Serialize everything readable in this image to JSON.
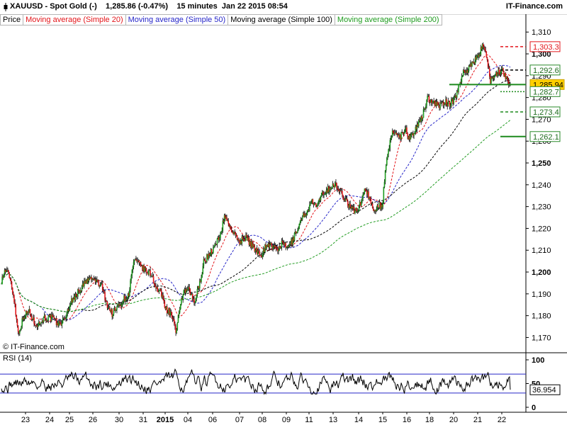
{
  "header": {
    "instrument_line": "XAUUSD - Spot Gold (-)    1,285.86 (-0.47%)    15 minutes  Jan 22 2015 08:54",
    "brand": "IT-Finance.com"
  },
  "legend": [
    {
      "label": "Price",
      "color": "#000000"
    },
    {
      "label": "Moving average (Simple 20)",
      "color": "#e3161b"
    },
    {
      "label": "Moving average (Simple 50)",
      "color": "#2626c8"
    },
    {
      "label": "Moving average (Simple 100)",
      "color": "#000000"
    },
    {
      "label": "Moving average (Simple 200)",
      "color": "#1f9b1f"
    }
  ],
  "main_credit": "© IT-Finance.com",
  "rsi_label": "RSI (14)",
  "chart_data": [
    {
      "type": "candlestick",
      "instrument": "XAUUSD - Spot Gold",
      "timeframe": "15 minutes",
      "last_price": 1285.86,
      "change_pct": -0.47,
      "ylim": [
        1163,
        1313
      ],
      "y_ticks": [
        1170,
        1180,
        1190,
        1200,
        1210,
        1220,
        1230,
        1240,
        1250,
        1260,
        1270,
        1280,
        1290,
        1300,
        1310
      ],
      "y_tick_labels": [
        "1,170",
        "1,180",
        "1,190",
        "1,200",
        "1,210",
        "1,220",
        "1,230",
        "1,240",
        "1,250",
        "1,260",
        "1,270",
        "1,280",
        "1,290",
        "1,300",
        "1,310"
      ],
      "y_major_ticks": [
        1200,
        1250,
        1300
      ],
      "x_tick_labels": [
        "23",
        "24",
        "25",
        "26",
        "30",
        "31",
        "2015",
        "04",
        "06",
        "07",
        "08",
        "09",
        "11",
        "13",
        "14",
        "15",
        "16",
        "18",
        "20",
        "21",
        "22"
      ],
      "price_path": [
        [
          0,
          1196
        ],
        [
          0.7,
          1201
        ],
        [
          1.6,
          1198
        ],
        [
          2.4,
          1188
        ],
        [
          3.2,
          1172
        ],
        [
          4.3,
          1180
        ],
        [
          5.3,
          1182
        ],
        [
          6.2,
          1177
        ],
        [
          7.1,
          1176
        ],
        [
          8.1,
          1179
        ],
        [
          9.6,
          1179
        ],
        [
          10.8,
          1176
        ],
        [
          12,
          1178
        ],
        [
          13.2,
          1186
        ],
        [
          14.4,
          1190
        ],
        [
          15.6,
          1194
        ],
        [
          16.8,
          1197
        ],
        [
          18,
          1196
        ],
        [
          19.2,
          1193
        ],
        [
          20.3,
          1184
        ],
        [
          21.1,
          1181
        ],
        [
          22.2,
          1184
        ],
        [
          23.5,
          1188
        ],
        [
          24.2,
          1189
        ],
        [
          25.2,
          1205
        ],
        [
          26.6,
          1203
        ],
        [
          27.6,
          1200
        ],
        [
          28.6,
          1199
        ],
        [
          29.6,
          1192
        ],
        [
          30.5,
          1190
        ],
        [
          31.4,
          1183
        ],
        [
          32.3,
          1181
        ],
        [
          32.9,
          1177
        ],
        [
          33.3,
          1170
        ],
        [
          33.9,
          1183
        ],
        [
          34.6,
          1190
        ],
        [
          35.6,
          1192
        ],
        [
          36.8,
          1186
        ],
        [
          37.8,
          1195
        ],
        [
          38.6,
          1205
        ],
        [
          39.6,
          1208
        ],
        [
          40.8,
          1212
        ],
        [
          41.8,
          1218
        ],
        [
          42.6,
          1226
        ],
        [
          43.3,
          1222
        ],
        [
          44.4,
          1217
        ],
        [
          45.4,
          1214
        ],
        [
          46.5,
          1216
        ],
        [
          47.5,
          1213
        ],
        [
          48.5,
          1210
        ],
        [
          49.6,
          1208
        ],
        [
          50.6,
          1213
        ],
        [
          51.5,
          1212
        ],
        [
          52.5,
          1210
        ],
        [
          53.5,
          1213
        ],
        [
          54.4,
          1211
        ],
        [
          55.4,
          1214
        ],
        [
          56.3,
          1219
        ],
        [
          57.3,
          1225
        ],
        [
          58.3,
          1228
        ],
        [
          59.2,
          1232
        ],
        [
          60.2,
          1230
        ],
        [
          61.2,
          1236
        ],
        [
          62.3,
          1238
        ],
        [
          63.6,
          1240
        ],
        [
          64.8,
          1236
        ],
        [
          65.7,
          1233
        ],
        [
          66.6,
          1229
        ],
        [
          67.7,
          1228
        ],
        [
          68.6,
          1232
        ],
        [
          69.3,
          1239
        ],
        [
          70.1,
          1234
        ],
        [
          70.9,
          1228
        ],
        [
          71.8,
          1231
        ],
        [
          72.6,
          1230
        ],
        [
          73.1,
          1244
        ],
        [
          73.7,
          1255
        ],
        [
          74.6,
          1265
        ],
        [
          75.9,
          1262
        ],
        [
          77.1,
          1266
        ],
        [
          77.7,
          1261
        ],
        [
          78.5,
          1264
        ],
        [
          79.1,
          1266
        ],
        [
          80.2,
          1271
        ],
        [
          81.2,
          1280
        ],
        [
          82.3,
          1278
        ],
        [
          83.4,
          1276
        ],
        [
          84.5,
          1278
        ],
        [
          85.4,
          1277
        ],
        [
          86.3,
          1279
        ],
        [
          87.2,
          1285
        ],
        [
          88.1,
          1292
        ],
        [
          88.9,
          1293
        ],
        [
          89.8,
          1296
        ],
        [
          90.7,
          1298
        ],
        [
          91.4,
          1302
        ],
        [
          92,
          1304
        ],
        [
          92.6,
          1296
        ],
        [
          93.2,
          1288
        ],
        [
          94,
          1290
        ],
        [
          94.8,
          1292
        ],
        [
          95.6,
          1292
        ],
        [
          96.4,
          1288
        ],
        [
          97,
          1285.86
        ]
      ],
      "moving_averages": [
        {
          "name": "Moving average (Simple 20)",
          "color": "#e3161b"
        },
        {
          "name": "Moving average (Simple 50)",
          "color": "#2626c8"
        },
        {
          "name": "Moving average (Simple 100)",
          "color": "#000000"
        },
        {
          "name": "Moving average (Simple 200)",
          "color": "#1f9b1f"
        }
      ],
      "price_labels": [
        {
          "value": 1303.3,
          "label": "1,303.3",
          "style": "dashed",
          "color": "#e3161b",
          "box_bg": "#ffffff",
          "box_border": "#e3161b"
        },
        {
          "value": 1292.6,
          "label": "1,292.6",
          "style": "dashed",
          "color": "#000000",
          "box_bg": "#ffffff",
          "box_border": "#2a8a2a"
        },
        {
          "value": 1285.94,
          "label": "1,285.94",
          "style": "solid",
          "color": "#1d8a1d",
          "box_bg": "#ffd000",
          "box_border": "#c9a000"
        },
        {
          "value": 1282.7,
          "label": "1,282.7",
          "style": "dotted",
          "color": "#1d8a1d",
          "box_bg": "#ffffff",
          "box_border": "#2a8a2a"
        },
        {
          "value": 1273.4,
          "label": "1,273.4",
          "style": "dashed",
          "color": "#1d8a1d",
          "box_bg": "#ffffff",
          "box_border": "#2a8a2a"
        },
        {
          "value": 1262.1,
          "label": "1,262.1",
          "style": "solid",
          "color": "#1d8a1d",
          "box_bg": "#ffffff",
          "box_border": "#2a8a2a"
        }
      ],
      "colors": {
        "up": "#1f9b1f",
        "down": "#e3161b",
        "axis": "#000000",
        "grid": "#e8e8e8"
      }
    },
    {
      "type": "line",
      "title": "RSI (14)",
      "value": 36.954,
      "value_label": "36.954",
      "ylim": [
        0,
        100
      ],
      "y_ticks": [
        0,
        50,
        100
      ],
      "bands": [
        30,
        70
      ],
      "band_color": "#2626c8",
      "line_color": "#000000"
    }
  ]
}
